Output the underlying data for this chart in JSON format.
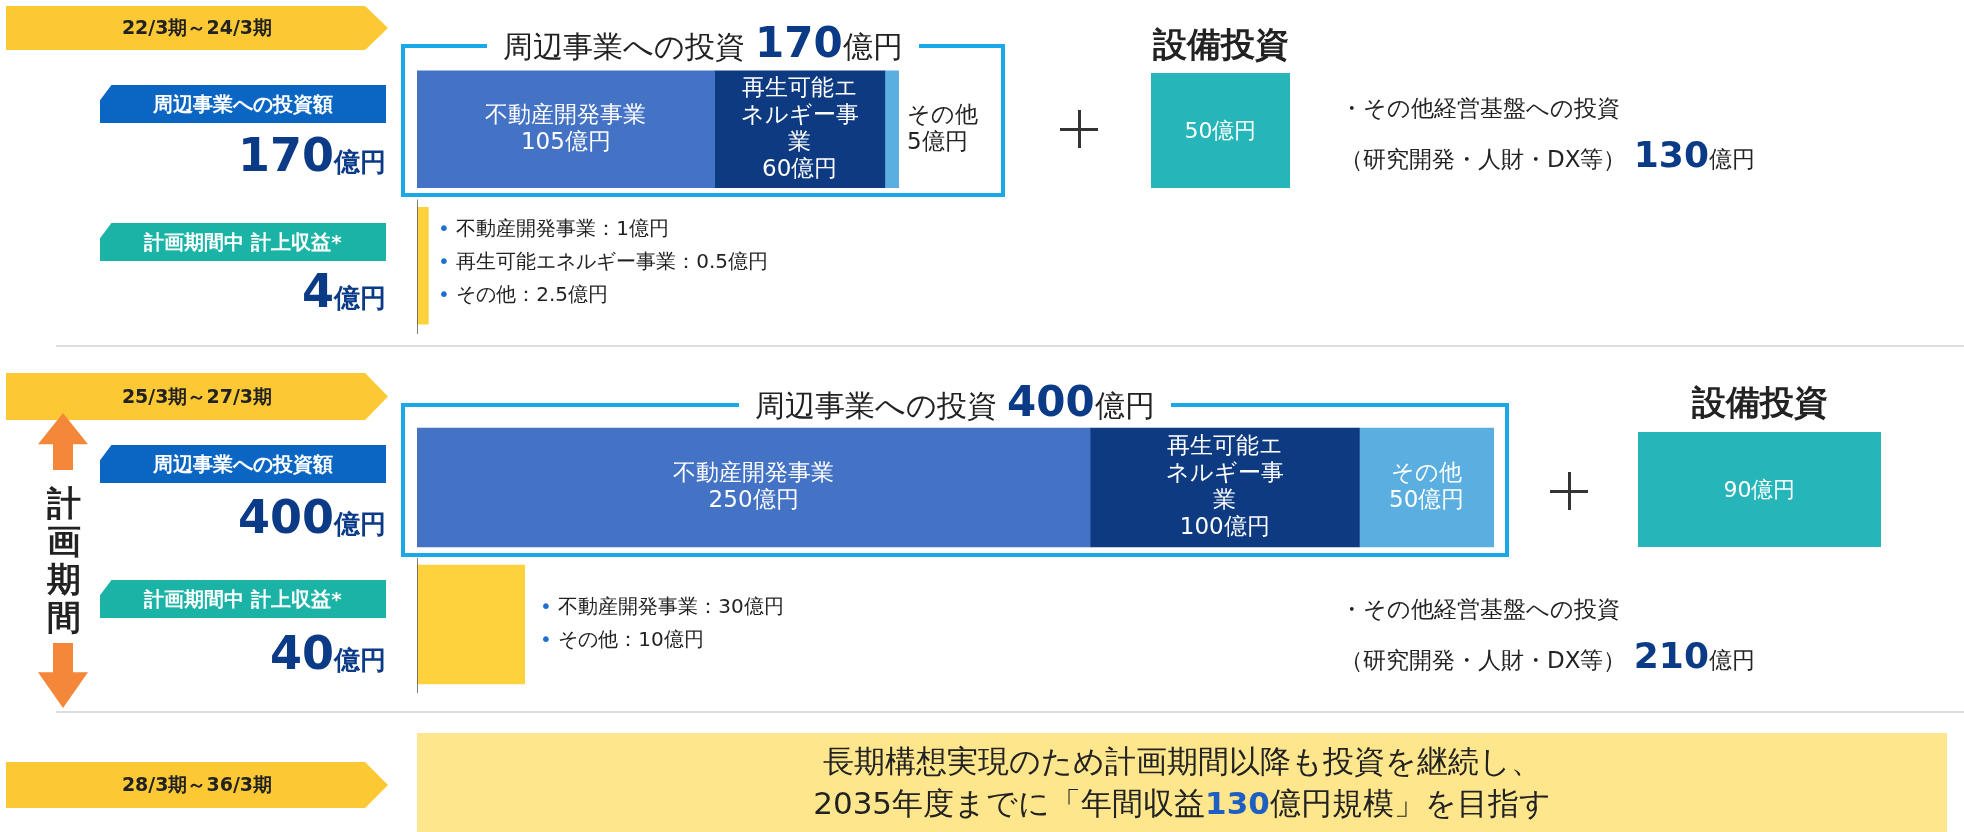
{
  "chart_data": [
    {
      "type": "bar",
      "orientation": "horizontal",
      "stacked": true,
      "subtitle": "22/3期～24/3期",
      "title": "周辺事業への投資 170億円",
      "categories": [
        "周辺事業への投資額",
        "計画期間中 計上収益*"
      ],
      "totals": [
        "170億円",
        "4億円"
      ],
      "series": [
        {
          "name": "不動産開発事業",
          "color": "#4472c4",
          "values": [
            105,
            null
          ],
          "value_labels": [
            "105億円",
            null
          ]
        },
        {
          "name": "再生可能エネルギー事業",
          "color": "#0e3a82",
          "values": [
            60,
            null
          ],
          "value_labels": [
            "60億円",
            null
          ]
        },
        {
          "name": "その他",
          "color": "#5aaee0",
          "values": [
            5,
            null
          ],
          "value_labels": [
            "5億円",
            null
          ]
        },
        {
          "color": "#fdd23c",
          "values": [
            null,
            4
          ]
        }
      ],
      "annotations": [
        "• 不動産開発事業：1億円",
        "• 再生可能エネルギー事業：0.5億円",
        "• その他：2.5億円"
      ]
    },
    {
      "type": "other",
      "title": "設備投資",
      "color": "#26b6b9",
      "annotations": [
        "50億円"
      ]
    },
    {
      "type": "other",
      "annotations": [
        "・その他経営基盤への投資",
        "（研究開発・人財・DX等） 130億円"
      ]
    },
    {
      "type": "bar",
      "orientation": "horizontal",
      "stacked": true,
      "subtitle": "25/3期～27/3期",
      "title": "周辺事業への投資 400億円",
      "ylabel": "計画期間",
      "categories": [
        "周辺事業への投資額",
        "計画期間中 計上収益*"
      ],
      "totals": [
        "400億円",
        "40億円"
      ],
      "series": [
        {
          "name": "不動産開発事業",
          "color": "#4472c4",
          "values": [
            250,
            null
          ],
          "value_labels": [
            "250億円",
            null
          ]
        },
        {
          "name": "再生可能エネルギー事業",
          "color": "#0e3a82",
          "values": [
            100,
            null
          ],
          "value_labels": [
            "100億円",
            null
          ]
        },
        {
          "name": "その他",
          "color": "#5aaee0",
          "values": [
            50,
            null
          ],
          "value_labels": [
            "50億円",
            null
          ]
        },
        {
          "color": "#fdd23c",
          "values": [
            null,
            40
          ]
        }
      ],
      "annotations": [
        "• 不動産開発事業：30億円",
        "• その他：10億円"
      ]
    },
    {
      "type": "other",
      "title": "設備投資",
      "color": "#26b6b9",
      "annotations": [
        "90億円"
      ]
    },
    {
      "type": "other",
      "annotations": [
        "・その他経営基盤への投資",
        "（研究開発・人財・DX等） 210億円"
      ]
    },
    {
      "type": "other",
      "subtitle": "28/3期～36/3期",
      "color": "#fde68c",
      "annotations": [
        "長期構想実現のため計画期間以降も投資を継続し、",
        "2035年度までに「年間収益130億円規模」を目指す"
      ]
    }
  ]
}
